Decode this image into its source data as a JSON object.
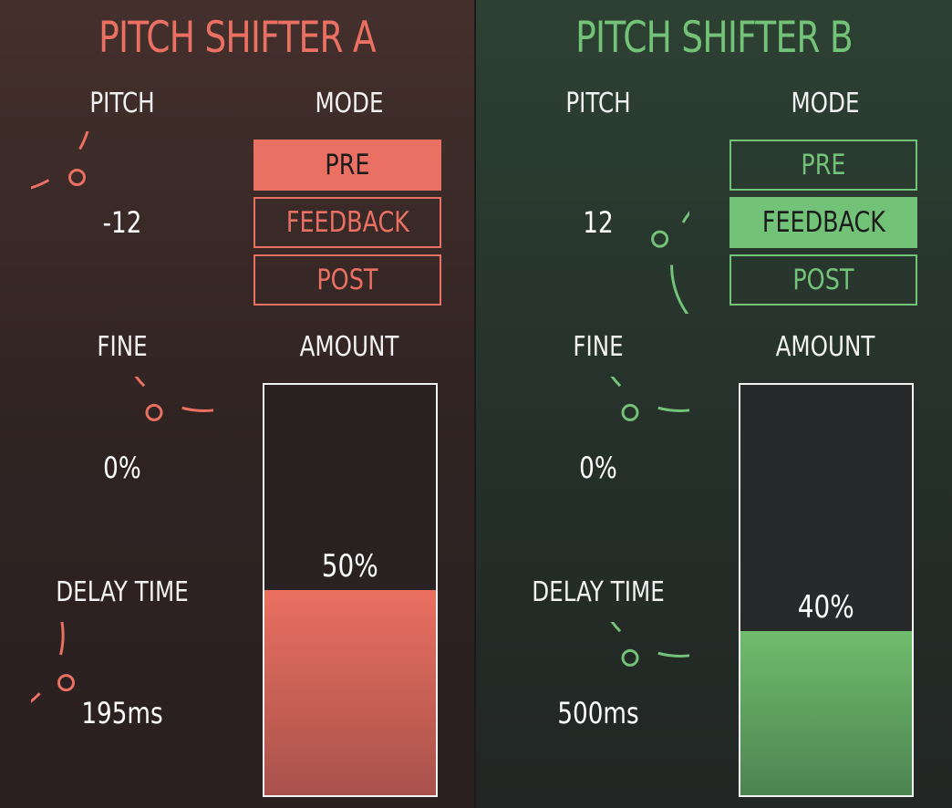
{
  "panels": [
    {
      "title": "PITCH SHIFTER A",
      "accent": "#e97062",
      "pitch": {
        "label": "PITCH",
        "value": "-12",
        "amount": -12,
        "min": -24,
        "max": 24
      },
      "mode": {
        "label": "MODE",
        "options": [
          "PRE",
          "FEEDBACK",
          "POST"
        ],
        "selected": "PRE"
      },
      "fine": {
        "label": "FINE",
        "value": "0%",
        "amount": 0,
        "min": -100,
        "max": 100
      },
      "delay": {
        "label": "DELAY TIME",
        "value": "195ms",
        "amount": 195,
        "min": 0,
        "max": 1000
      },
      "amount": {
        "label": "AMOUNT",
        "value": "50%",
        "fraction": 0.5
      }
    },
    {
      "title": "PITCH SHIFTER B",
      "accent": "#72c277",
      "pitch": {
        "label": "PITCH",
        "value": "12",
        "amount": 12,
        "min": -24,
        "max": 24
      },
      "mode": {
        "label": "MODE",
        "options": [
          "PRE",
          "FEEDBACK",
          "POST"
        ],
        "selected": "FEEDBACK"
      },
      "fine": {
        "label": "FINE",
        "value": "0%",
        "amount": 0,
        "min": -100,
        "max": 100
      },
      "delay": {
        "label": "DELAY TIME",
        "value": "500ms",
        "amount": 500,
        "min": 0,
        "max": 1000
      },
      "amount": {
        "label": "AMOUNT",
        "value": "40%",
        "fraction": 0.4
      }
    }
  ]
}
